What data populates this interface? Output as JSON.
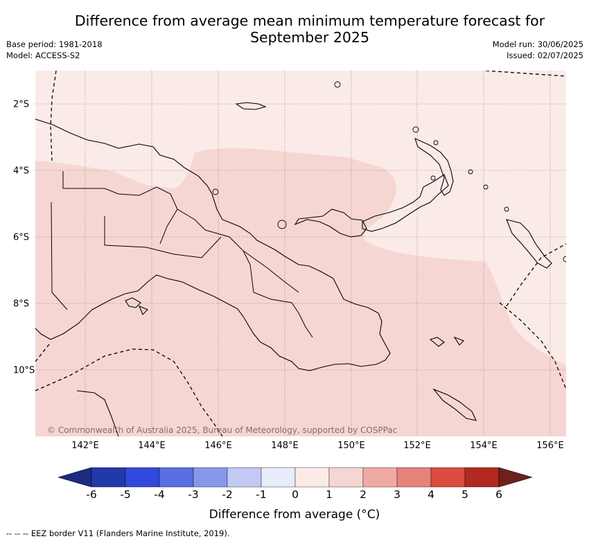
{
  "title_line1": "Difference from average mean minimum temperature forecast for",
  "title_line2": "September 2025",
  "meta": {
    "base_period": "Base period: 1981-2018",
    "model": "Model: ACCESS-S2",
    "model_run": "Model run: 30/06/2025",
    "issued": "Issued: 02/07/2025"
  },
  "map": {
    "x_ticks": [
      "142°E",
      "144°E",
      "146°E",
      "148°E",
      "150°E",
      "152°E",
      "154°E",
      "156°E"
    ],
    "y_ticks": [
      "2°S",
      "4°S",
      "6°S",
      "8°S",
      "10°S"
    ],
    "copyright": "© Commonwealth of Australia 2025, Bureau of Meteorology, supported by COSPPac",
    "colors": {
      "anomaly_0_1": "#fbebe8",
      "anomaly_1_2": "#f6d6d3",
      "land_outline": "#000000",
      "grid": "#555555"
    }
  },
  "colorbar": {
    "label": "Difference from average (°C)",
    "ticks": [
      "-6",
      "-5",
      "-4",
      "-3",
      "-2",
      "-1",
      "0",
      "1",
      "2",
      "3",
      "4",
      "5",
      "6"
    ],
    "under_color": "#1d2c80",
    "over_color": "#70201c",
    "colors": [
      "#2338a9",
      "#3249dd",
      "#5a6fe3",
      "#8797ea",
      "#c2c9f5",
      "#e8ecfa",
      "#fbebe8",
      "#f6d6d3",
      "#f0aaa5",
      "#e7827b",
      "#dc4b40",
      "#b2291f"
    ]
  },
  "legend": {
    "symbol": "-- -- --",
    "text": "EEZ border V11 (Flanders Marine Institute, 2019)."
  }
}
